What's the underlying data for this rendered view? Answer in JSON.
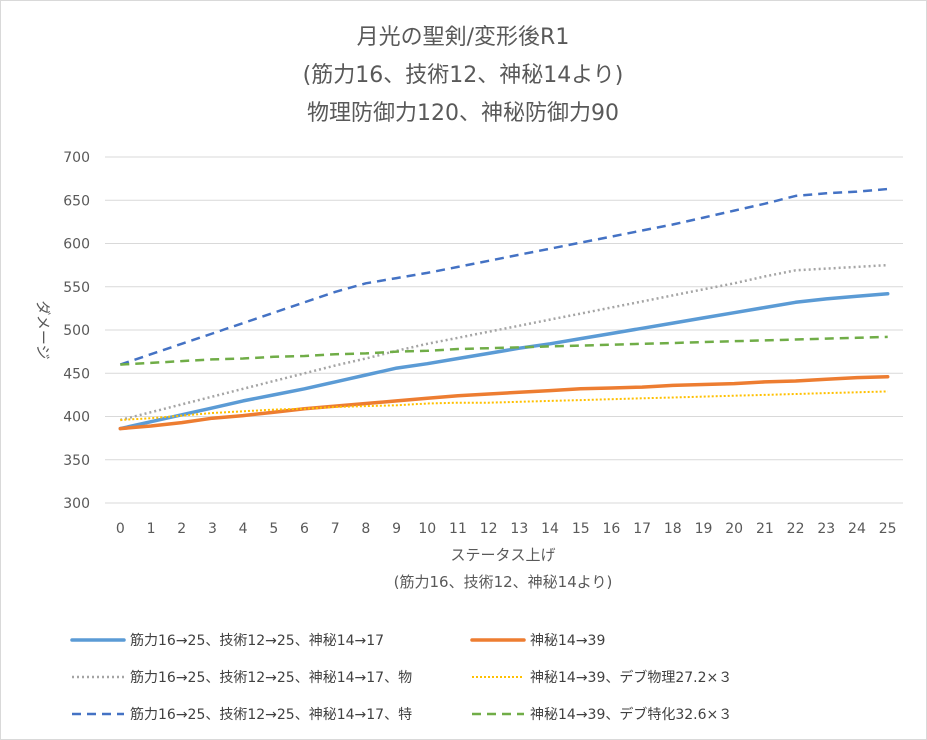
{
  "chart_data": {
    "type": "line",
    "title_lines": [
      "月光の聖剣/変形後R1",
      "(筋力16、技術12、神秘14より)",
      "物理防御力120、神秘防御力90"
    ],
    "xlabel_lines": [
      "ステータス上げ",
      "(筋力16、技術12、神秘14より)"
    ],
    "ylabel": "ダメージ",
    "x": [
      0,
      1,
      2,
      3,
      4,
      5,
      6,
      7,
      8,
      9,
      10,
      11,
      12,
      13,
      14,
      15,
      16,
      17,
      18,
      19,
      20,
      21,
      22,
      23,
      24,
      25
    ],
    "ylim": [
      300,
      700
    ],
    "yticks": [
      300,
      350,
      400,
      450,
      500,
      550,
      600,
      650,
      700
    ],
    "grid": true,
    "series": [
      {
        "name": "筋力16→25、技術12→25、神秘14→17",
        "color": "#5b9bd5",
        "style": "solid",
        "values": [
          386,
          394,
          402,
          410,
          418,
          425,
          432,
          440,
          448,
          456,
          461,
          467,
          473,
          479,
          484,
          490,
          496,
          502,
          508,
          514,
          520,
          526,
          532,
          536,
          539,
          542
        ]
      },
      {
        "name": "神秘14→39",
        "color": "#ed7d31",
        "style": "solid",
        "values": [
          386,
          389,
          393,
          398,
          401,
          405,
          409,
          412,
          415,
          418,
          421,
          424,
          426,
          428,
          430,
          432,
          433,
          434,
          436,
          437,
          438,
          440,
          441,
          443,
          445,
          446
        ]
      },
      {
        "name": "筋力16→25、技術12→25、神秘14→17、物",
        "color": "#a5a5a5",
        "style": "dotted",
        "values": [
          396,
          405,
          414,
          423,
          432,
          441,
          450,
          459,
          467,
          476,
          484,
          491,
          498,
          505,
          512,
          519,
          526,
          533,
          540,
          547,
          554,
          562,
          569,
          571,
          573,
          575
        ]
      },
      {
        "name": "神秘14→39、デブ物理27.2×３",
        "color": "#ffc000",
        "style": "dotted",
        "values": [
          396,
          398,
          401,
          404,
          406,
          408,
          409,
          411,
          412,
          413,
          415,
          416,
          416,
          417,
          418,
          419,
          420,
          421,
          422,
          423,
          424,
          425,
          426,
          427,
          428,
          429
        ]
      },
      {
        "name": "筋力16→25、技術12→25、神秘14→17、特",
        "color": "#4472c4",
        "style": "dashed",
        "values": [
          460,
          472,
          484,
          496,
          508,
          520,
          532,
          544,
          554,
          560,
          566,
          573,
          580,
          587,
          594,
          601,
          608,
          615,
          622,
          630,
          638,
          646,
          655,
          658,
          660,
          663
        ]
      },
      {
        "name": "神秘14→39、デブ特化32.6×３",
        "color": "#70ad47",
        "style": "dashed",
        "values": [
          460,
          462,
          464,
          466,
          467,
          469,
          470,
          472,
          473,
          475,
          476,
          478,
          479,
          480,
          481,
          482,
          483,
          484,
          485,
          486,
          487,
          488,
          489,
          490,
          491,
          492
        ]
      }
    ]
  }
}
